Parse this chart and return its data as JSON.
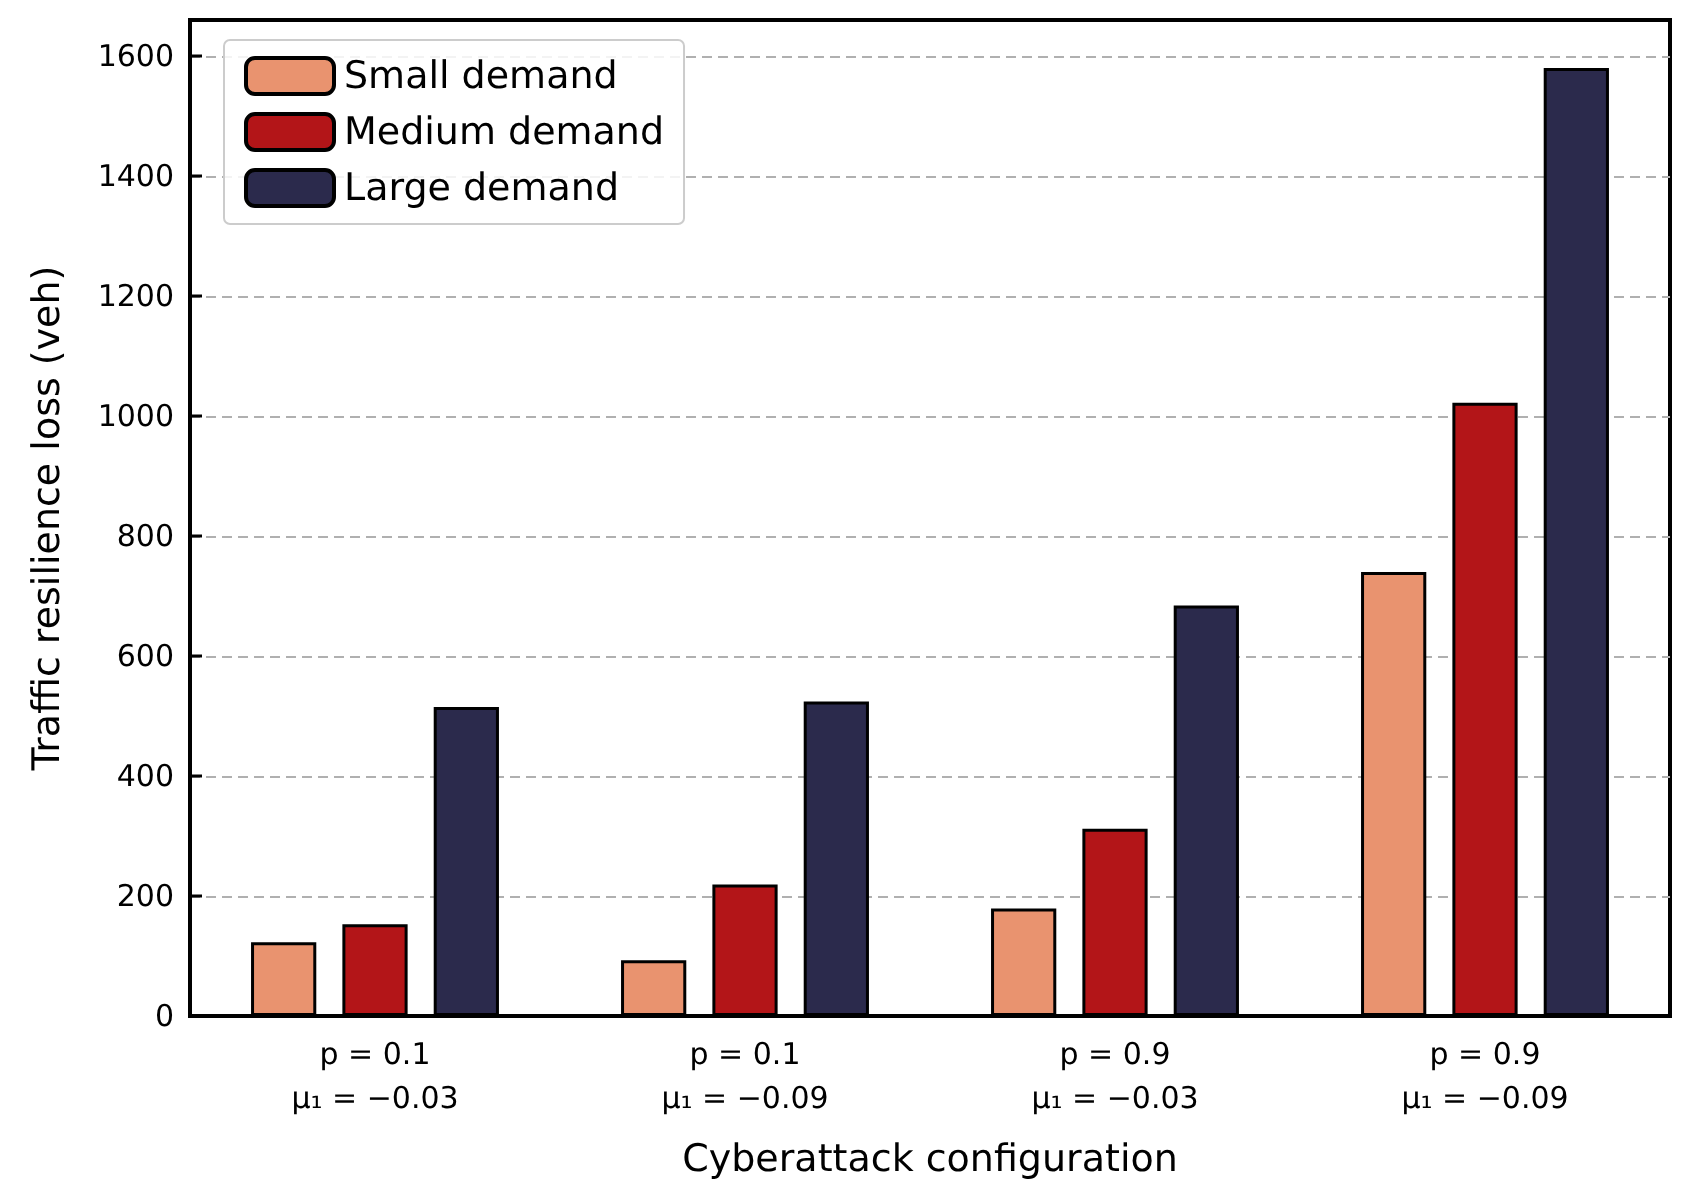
{
  "chart_data": {
    "type": "bar",
    "xlabel": "Cyberattack configuration",
    "ylabel": "Traffic resilience loss (veh)",
    "categories": [
      "p = 0.1\nμ₁ = −0.03",
      "p = 0.1\nμ₁ = −0.09",
      "p = 0.9\nμ₁ = −0.03",
      "p = 0.9\nμ₁ = −0.09"
    ],
    "series": [
      {
        "name": "Small demand",
        "color": "#e9936f",
        "values": [
          123,
          93,
          179,
          740
        ]
      },
      {
        "name": "Medium demand",
        "color": "#b31518",
        "values": [
          153,
          219,
          312,
          1022
        ]
      },
      {
        "name": "Large demand",
        "color": "#2b2a4c",
        "values": [
          515,
          524,
          684,
          1580
        ]
      }
    ],
    "ylim": [
      0,
      1660
    ],
    "yticks": [
      0,
      200,
      400,
      600,
      800,
      1000,
      1200,
      1400,
      1600
    ],
    "grid": "y",
    "legend": "top left"
  }
}
